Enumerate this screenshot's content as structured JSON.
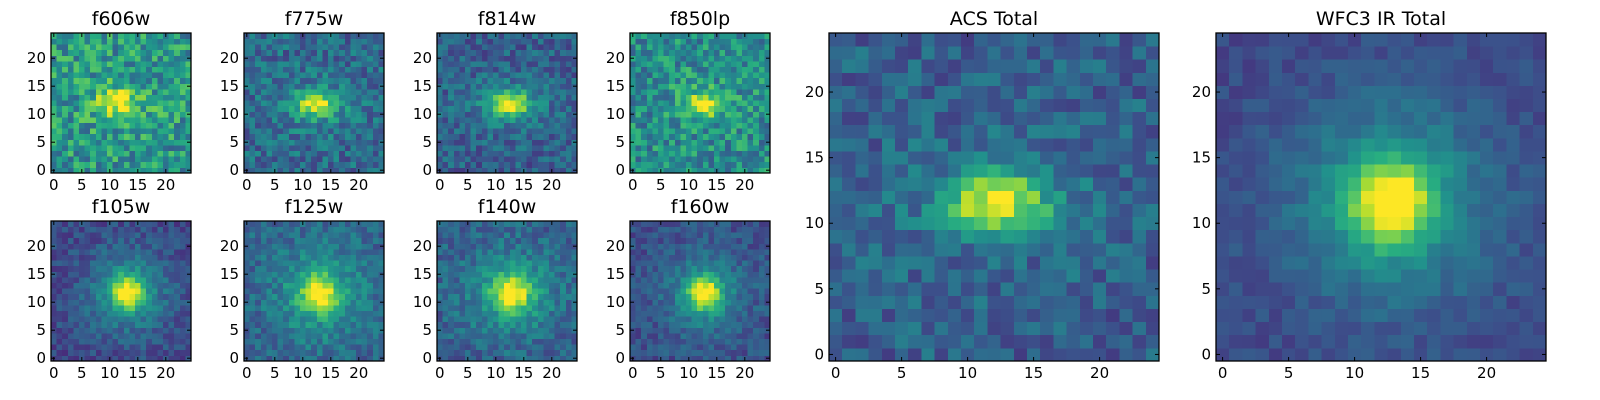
{
  "figure": {
    "colormap": "viridis",
    "colormap_stops": [
      "#440154",
      "#472d7b",
      "#3b528b",
      "#2c728e",
      "#21918c",
      "#28ae80",
      "#5ec962",
      "#addc30",
      "#fde725"
    ]
  },
  "chart_data": [
    {
      "type": "heatmap",
      "id": "f606w",
      "title": "f606w",
      "size": 25,
      "xlim": [
        0,
        24
      ],
      "ylim": [
        0,
        24
      ],
      "xticks": [
        0,
        5,
        10,
        15,
        20
      ],
      "yticks": [
        0,
        5,
        10,
        15,
        20
      ],
      "source": {
        "cx": 11.5,
        "cy": 12.2,
        "sx": 2.6,
        "sy": 1.7,
        "amp": 0.42,
        "bg": 0.52,
        "noise": 0.22,
        "halo": 0.06,
        "seed": 11
      }
    },
    {
      "type": "heatmap",
      "id": "f775w",
      "title": "f775w",
      "size": 25,
      "xlim": [
        0,
        24
      ],
      "ylim": [
        0,
        24
      ],
      "xticks": [
        0,
        5,
        10,
        15,
        20
      ],
      "yticks": [
        0,
        5,
        10,
        15,
        20
      ],
      "source": {
        "cx": 12.3,
        "cy": 11.8,
        "sx": 2.6,
        "sy": 1.6,
        "amp": 0.55,
        "bg": 0.34,
        "noise": 0.16,
        "halo": 0.1,
        "seed": 23
      }
    },
    {
      "type": "heatmap",
      "id": "f814w",
      "title": "f814w",
      "size": 25,
      "xlim": [
        0,
        24
      ],
      "ylim": [
        0,
        24
      ],
      "xticks": [
        0,
        5,
        10,
        15,
        20
      ],
      "yticks": [
        0,
        5,
        10,
        15,
        20
      ],
      "source": {
        "cx": 12.5,
        "cy": 11.8,
        "sx": 2.6,
        "sy": 1.6,
        "amp": 0.62,
        "bg": 0.3,
        "noise": 0.14,
        "halo": 0.1,
        "seed": 37
      }
    },
    {
      "type": "heatmap",
      "id": "f850lp",
      "title": "f850lp",
      "size": 25,
      "xlim": [
        0,
        24
      ],
      "ylim": [
        0,
        24
      ],
      "xticks": [
        0,
        5,
        10,
        15,
        20
      ],
      "yticks": [
        0,
        5,
        10,
        15,
        20
      ],
      "source": {
        "cx": 12.8,
        "cy": 11.8,
        "sx": 2.2,
        "sy": 1.7,
        "amp": 0.45,
        "bg": 0.48,
        "noise": 0.2,
        "halo": 0.06,
        "seed": 51
      }
    },
    {
      "type": "heatmap",
      "id": "f105w",
      "title": "f105w",
      "size": 25,
      "xlim": [
        0,
        24
      ],
      "ylim": [
        0,
        24
      ],
      "xticks": [
        0,
        5,
        10,
        15,
        20
      ],
      "yticks": [
        0,
        5,
        10,
        15,
        20
      ],
      "source": {
        "cx": 13.2,
        "cy": 11.8,
        "sx": 2.0,
        "sy": 2.0,
        "amp": 0.58,
        "bg": 0.22,
        "noise": 0.1,
        "halo": 0.3,
        "seed": 67
      }
    },
    {
      "type": "heatmap",
      "id": "f125w",
      "title": "f125w",
      "size": 25,
      "xlim": [
        0,
        24
      ],
      "ylim": [
        0,
        24
      ],
      "xticks": [
        0,
        5,
        10,
        15,
        20
      ],
      "yticks": [
        0,
        5,
        10,
        15,
        20
      ],
      "source": {
        "cx": 13.0,
        "cy": 11.5,
        "sx": 2.2,
        "sy": 2.2,
        "amp": 0.52,
        "bg": 0.32,
        "noise": 0.12,
        "halo": 0.26,
        "seed": 79
      }
    },
    {
      "type": "heatmap",
      "id": "f140w",
      "title": "f140w",
      "size": 25,
      "xlim": [
        0,
        24
      ],
      "ylim": [
        0,
        24
      ],
      "xticks": [
        0,
        5,
        10,
        15,
        20
      ],
      "yticks": [
        0,
        5,
        10,
        15,
        20
      ],
      "source": {
        "cx": 12.8,
        "cy": 11.6,
        "sx": 2.2,
        "sy": 2.1,
        "amp": 0.55,
        "bg": 0.3,
        "noise": 0.12,
        "halo": 0.28,
        "seed": 91
      }
    },
    {
      "type": "heatmap",
      "id": "f160w",
      "title": "f160w",
      "size": 25,
      "xlim": [
        0,
        24
      ],
      "ylim": [
        0,
        24
      ],
      "xticks": [
        0,
        5,
        10,
        15,
        20
      ],
      "yticks": [
        0,
        5,
        10,
        15,
        20
      ],
      "source": {
        "cx": 12.8,
        "cy": 11.6,
        "sx": 2.0,
        "sy": 2.0,
        "amp": 0.62,
        "bg": 0.24,
        "noise": 0.1,
        "halo": 0.26,
        "seed": 103
      }
    },
    {
      "type": "heatmap",
      "id": "acs-total",
      "title": "ACS Total",
      "size": 25,
      "xlim": [
        0,
        24
      ],
      "ylim": [
        0,
        24
      ],
      "xticks": [
        0,
        5,
        10,
        15,
        20
      ],
      "yticks": [
        0,
        5,
        10,
        15,
        20
      ],
      "source": {
        "cx": 12.2,
        "cy": 11.6,
        "sx": 2.7,
        "sy": 1.5,
        "amp": 0.62,
        "bg": 0.3,
        "noise": 0.13,
        "halo": 0.08,
        "seed": 127
      }
    },
    {
      "type": "heatmap",
      "id": "wfc3-ir-total",
      "title": "WFC3 IR Total",
      "size": 25,
      "xlim": [
        0,
        24
      ],
      "ylim": [
        0,
        24
      ],
      "xticks": [
        0,
        5,
        10,
        15,
        20
      ],
      "yticks": [
        0,
        5,
        10,
        15,
        20
      ],
      "source": {
        "cx": 12.8,
        "cy": 11.6,
        "sx": 2.1,
        "sy": 2.1,
        "amp": 0.62,
        "bg": 0.22,
        "noise": 0.06,
        "halo": 0.32,
        "seed": 139
      }
    }
  ]
}
